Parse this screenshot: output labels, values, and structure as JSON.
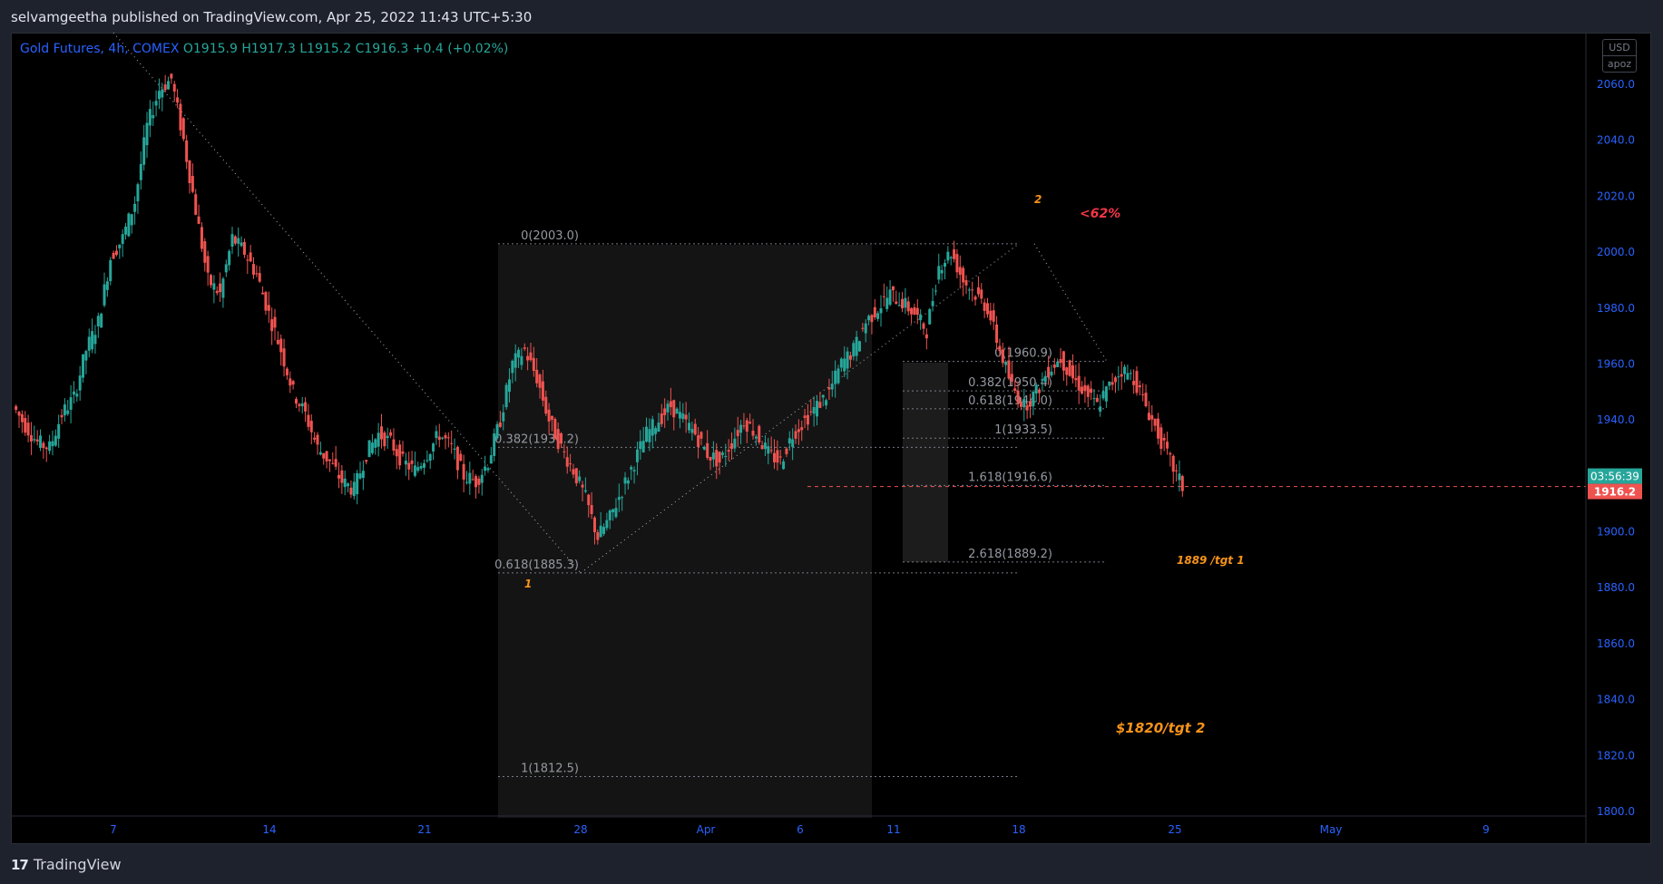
{
  "header": {
    "published": "selvamgeetha published on TradingView.com, Apr 25, 2022 11:43 UTC+5:30"
  },
  "legend": {
    "symbol": "Gold Futures, 4h, COMEX",
    "open": "O1915.9",
    "high": "H1917.3",
    "low": "L1915.2",
    "close": "C1916.3",
    "change": "+0.4 (+0.02%)"
  },
  "scale_buttons": {
    "currency": "USD",
    "mode": "apoz"
  },
  "footer": {
    "brand": "TradingView",
    "logo_text": "17"
  },
  "colors": {
    "up": "#26a69a",
    "down": "#ef5350",
    "annotation": "#f7931a",
    "red_annotation": "#f23645",
    "axis_text": "#2962ff"
  },
  "chart_data": {
    "type": "candlestick",
    "timeframe": "4h",
    "ylim": [
      1800,
      2070
    ],
    "y_ticks": [
      "2060.0",
      "2040.0",
      "2020.0",
      "2000.0",
      "1980.0",
      "1960.0",
      "1940.0",
      "1920.0",
      "1900.0",
      "1880.0",
      "1860.0",
      "1840.0",
      "1820.0",
      "1800.0"
    ],
    "x_ticks": [
      "7",
      "14",
      "21",
      "28",
      "Apr",
      "6",
      "11",
      "18",
      "25",
      "May",
      "9"
    ],
    "last_price": "1916.2",
    "countdown": "03:56:39",
    "fib_levels_large": [
      {
        "label": "0(2003.0)",
        "price": 2003.0
      },
      {
        "label": "0.382(1930.2)",
        "price": 1930.2
      },
      {
        "label": "0.618(1885.3)",
        "price": 1885.3
      },
      {
        "label": "1(1812.5)",
        "price": 1812.5
      }
    ],
    "fib_levels_small": [
      {
        "label": "0(1960.9)",
        "price": 1960.9
      },
      {
        "label": "0.382(1950.4)",
        "price": 1950.4
      },
      {
        "label": "0.618(1944.0)",
        "price": 1944.0
      },
      {
        "label": "1(1933.5)",
        "price": 1933.5
      },
      {
        "label": "1.618(1916.6)",
        "price": 1916.6
      },
      {
        "label": "2.618(1889.2)",
        "price": 1889.2
      }
    ],
    "annotations": [
      {
        "text": "1"
      },
      {
        "text": "2"
      },
      {
        "text": "<62%"
      },
      {
        "text": "1889 /tgt 1"
      },
      {
        "text": "$1820/tgt 2"
      }
    ],
    "price_path": [
      1945,
      1938,
      1932,
      1930,
      1942,
      1948,
      1965,
      1975,
      1998,
      2005,
      2018,
      2045,
      2058,
      2062,
      2040,
      2015,
      1990,
      1985,
      2005,
      2000,
      1992,
      1978,
      1965,
      1950,
      1942,
      1930,
      1925,
      1918,
      1915,
      1928,
      1935,
      1932,
      1925,
      1922,
      1928,
      1935,
      1930,
      1920,
      1918,
      1925,
      1940,
      1960,
      1965,
      1955,
      1940,
      1930,
      1922,
      1912,
      1898,
      1905,
      1915,
      1925,
      1935,
      1940,
      1945,
      1940,
      1935,
      1928,
      1925,
      1932,
      1940,
      1935,
      1928,
      1925,
      1935,
      1940,
      1945,
      1950,
      1960,
      1965,
      1975,
      1980,
      1985,
      1982,
      1978,
      1972,
      1995,
      2000,
      1990,
      1985,
      1980,
      1965,
      1952,
      1945,
      1950,
      1958,
      1962,
      1955,
      1950,
      1945,
      1952,
      1958,
      1955,
      1945,
      1935,
      1925,
      1916
    ]
  }
}
